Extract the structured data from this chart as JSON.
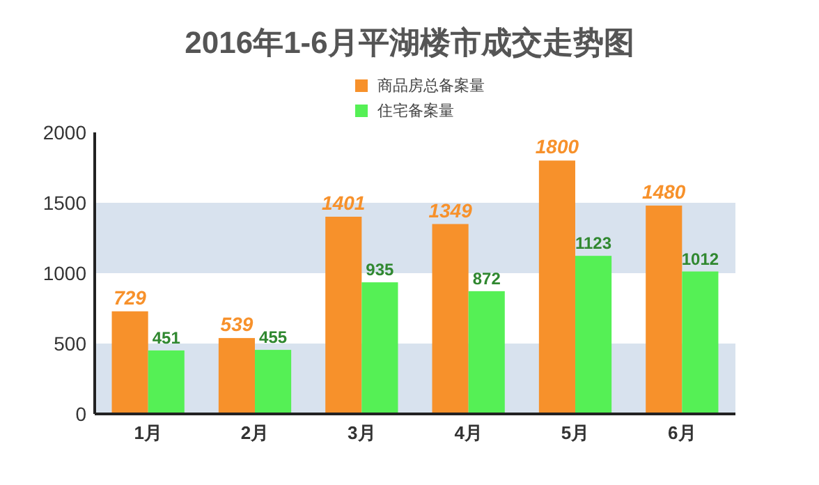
{
  "chart_data": {
    "type": "bar",
    "title": "2016年1-6月平湖楼市成交走势图",
    "categories": [
      "1月",
      "2月",
      "3月",
      "4月",
      "5月",
      "6月"
    ],
    "series": [
      {
        "name": "商品房总备案量",
        "color": "#f7912b",
        "values": [
          729,
          539,
          1401,
          1349,
          1800,
          1480
        ]
      },
      {
        "name": "住宅备案量",
        "color": "#55f055",
        "values": [
          451,
          455,
          935,
          872,
          1123,
          1012
        ]
      }
    ],
    "ylim": [
      0,
      2000
    ],
    "yticks": [
      0,
      500,
      1000,
      1500,
      2000
    ],
    "grid": false,
    "legend": "top",
    "data_labels": true,
    "bands": [
      {
        "axis": "y",
        "from": 0,
        "to": 500,
        "color": "#d8e2ee"
      },
      {
        "axis": "y",
        "from": 1000,
        "to": 1500,
        "color": "#d8e2ee"
      }
    ]
  }
}
